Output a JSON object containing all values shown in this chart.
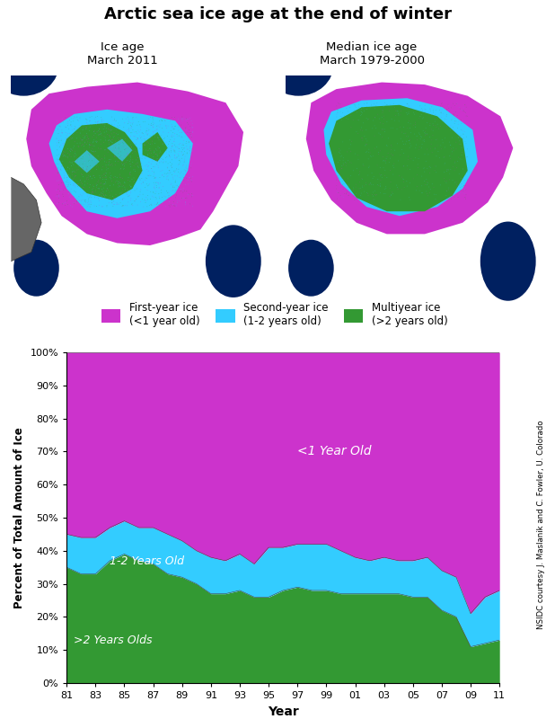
{
  "title": "Arctic sea ice age at the end of winter",
  "subtitle_left": "Ice age\nMarch 2011",
  "subtitle_right": "Median ice age\nMarch 1979-2000",
  "legend_items": [
    {
      "label": "First-year ice\n(<1 year old)",
      "color": "#CC33CC"
    },
    {
      "label": "Second-year ice\n(1-2 years old)",
      "color": "#33CCFF"
    },
    {
      "label": "Multiyear ice\n(>2 years old)",
      "color": "#339933"
    }
  ],
  "xtick_positions": [
    0,
    2,
    4,
    6,
    8,
    10,
    12,
    14,
    16,
    18,
    20,
    22,
    24,
    26,
    28,
    30
  ],
  "xtick_labels": [
    "81",
    "83",
    "85",
    "87",
    "89",
    "91",
    "93",
    "95",
    "97",
    "99",
    "01",
    "03",
    "05",
    "07",
    "09",
    "11"
  ],
  "multiyear_pct": [
    35,
    33,
    33,
    37,
    39,
    37,
    36,
    33,
    32,
    30,
    27,
    27,
    28,
    26,
    26,
    28,
    29,
    28,
    28,
    27,
    27,
    27,
    27,
    27,
    26,
    26,
    22,
    20,
    11,
    12,
    13
  ],
  "secondyear_pct": [
    10,
    11,
    11,
    10,
    10,
    10,
    11,
    12,
    11,
    10,
    11,
    10,
    11,
    10,
    15,
    13,
    13,
    14,
    14,
    13,
    11,
    10,
    11,
    10,
    11,
    12,
    12,
    12,
    10,
    14,
    15
  ],
  "firstyear_pct": [
    55,
    56,
    56,
    53,
    51,
    53,
    53,
    55,
    57,
    60,
    62,
    63,
    61,
    64,
    59,
    59,
    58,
    58,
    58,
    60,
    62,
    63,
    62,
    63,
    63,
    62,
    66,
    68,
    79,
    74,
    72
  ],
  "color_multiyear": "#339933",
  "color_secondyear": "#33CCFF",
  "color_firstyear": "#CC33CC",
  "ylabel": "Percent of Total Amount of Ice",
  "xlabel": "Year",
  "credit": "NSIDC courtesy J. Maslanik and C. Fowler, U. Colorado",
  "label_lt1": "<1 Year Old",
  "label_12": "1-2 Years Old",
  "label_gt2": ">2 Years Olds",
  "map_gray": "#888888",
  "map_land": "#666666",
  "map_ocean": "#002060",
  "map_land_outline": "#222222"
}
